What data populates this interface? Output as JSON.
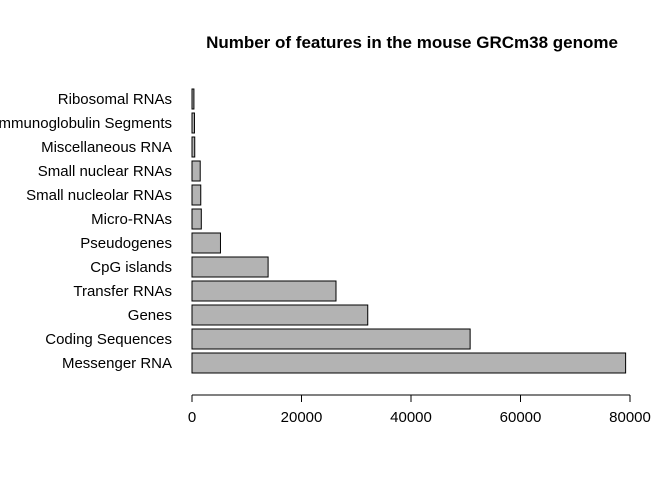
{
  "chart_data": {
    "type": "bar",
    "orientation": "horizontal",
    "title": "Number of features in the mouse GRCm38 genome",
    "xlabel": "",
    "ylabel": "",
    "categories": [
      "Messenger RNA",
      "Coding Sequences",
      "Genes",
      "Transfer RNAs",
      "CpG islands",
      "Pseudogenes",
      "Micro-RNAs",
      "Small nucleolar RNAs",
      "Small nuclear RNAs",
      "Miscellaneous RNA",
      "Immunoglobulin Segments",
      "Ribosomal RNAs"
    ],
    "values": [
      79200,
      50800,
      32100,
      26300,
      13900,
      5200,
      1700,
      1600,
      1500,
      500,
      450,
      350
    ],
    "xlim": [
      0,
      80000
    ],
    "xticks": [
      0,
      20000,
      40000,
      60000,
      80000
    ],
    "xtick_labels": [
      "0",
      "20000",
      "40000",
      "60000",
      "80000"
    ],
    "grid": false,
    "legend": "none",
    "bar_color": "#b3b3b3",
    "bar_edge_color": "#000000"
  }
}
